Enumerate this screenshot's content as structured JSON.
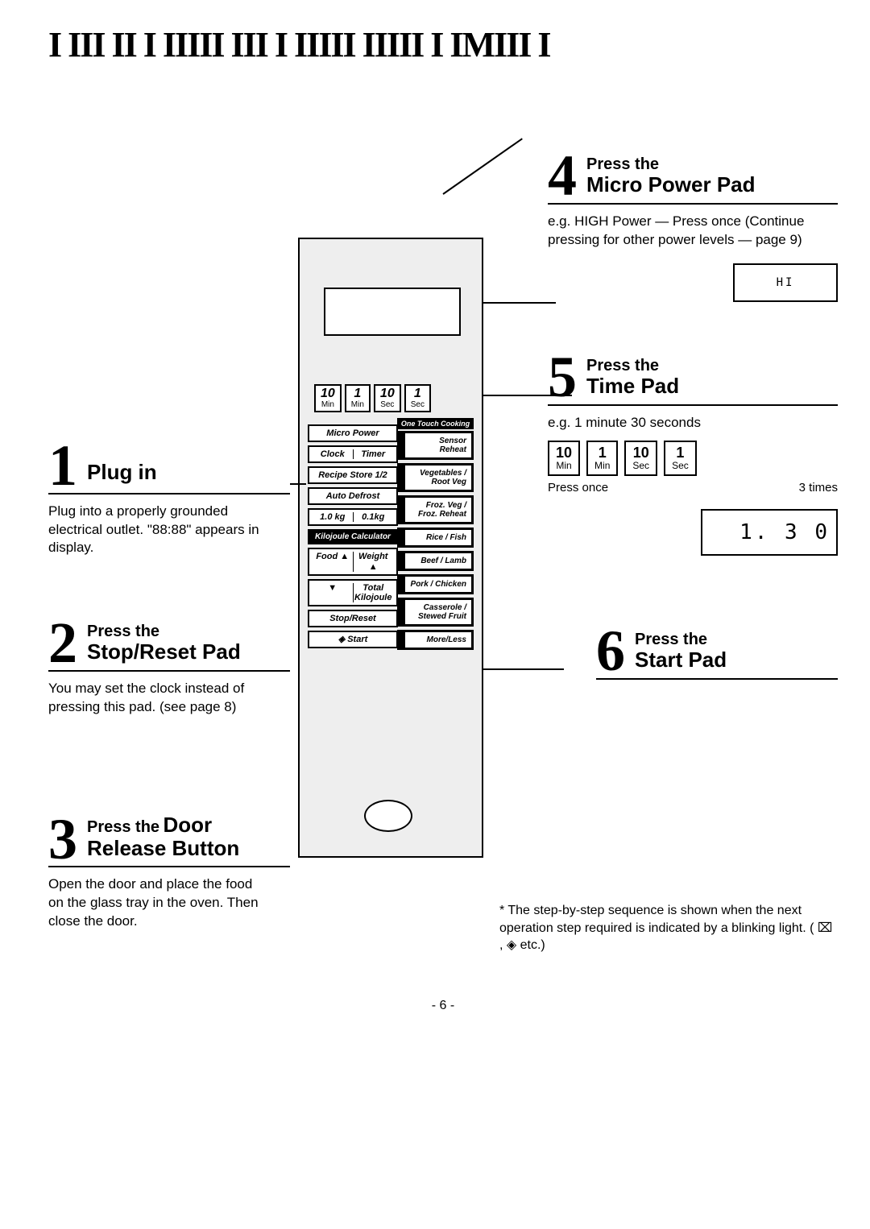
{
  "page_number": "- 6 -",
  "title_garbled": "I III II I IIIII III I IIIII IIIII I IMIII I",
  "steps": {
    "s1": {
      "num": "1",
      "title_single": "Plug in",
      "body": "Plug into a properly grounded electrical outlet. \"88:88\" appears in display."
    },
    "s2": {
      "num": "2",
      "title_line1": "Press the",
      "title_line2": "Stop/Reset Pad",
      "body": "You may set the clock instead of pressing this pad. (see page 8)"
    },
    "s3": {
      "num": "3",
      "title_line1": "Press the",
      "title_line2_html": "Press the  Door Release Button",
      "l1": "Press the",
      "l1b": "Door",
      "l2": "Release Button",
      "body": "Open the door and place the food on the glass tray in the oven. Then close the door."
    },
    "s4": {
      "num": "4",
      "title_line1": "Press the",
      "title_line2": "Micro Power Pad",
      "eg": "e.g.  HIGH Power — Press once (Continue pressing for other power levels — page 9)"
    },
    "s5": {
      "num": "5",
      "title_line1": "Press the",
      "title_line2": "Time Pad",
      "eg": "e.g.  1 minute 30 seconds",
      "caption_left": "Press once",
      "caption_right": "3 times",
      "display_value": "1. 3 0"
    },
    "s6": {
      "num": "6",
      "title_line1": "Press the",
      "title_line2": "Start Pad"
    }
  },
  "timepads": [
    {
      "big": "10",
      "sub": "Min"
    },
    {
      "big": "1",
      "sub": "Min"
    },
    {
      "big": "10",
      "sub": "Sec"
    },
    {
      "big": "1",
      "sub": "Sec"
    }
  ],
  "panel": {
    "timepads": [
      {
        "big": "10",
        "sub": "Min"
      },
      {
        "big": "1",
        "sub": "Min"
      },
      {
        "big": "10",
        "sub": "Sec"
      },
      {
        "big": "1",
        "sub": "Sec"
      }
    ],
    "left_buttons": [
      {
        "type": "single",
        "label": "Micro Power"
      },
      {
        "type": "split",
        "a": "Clock",
        "b": "Timer"
      },
      {
        "type": "single",
        "label": "Recipe Store 1/2"
      },
      {
        "type": "single",
        "label": "Auto Defrost"
      },
      {
        "type": "split",
        "a": "1.0 kg",
        "b": "0.1kg"
      },
      {
        "type": "head",
        "label": "Kilojoule Calculator"
      },
      {
        "type": "split",
        "a": "Food ▲",
        "b": "Weight ▲"
      },
      {
        "type": "split",
        "a": "▼",
        "b": "Total Kilojoule"
      },
      {
        "type": "single",
        "label": "Stop/Reset"
      },
      {
        "type": "single",
        "label": "◈ Start"
      }
    ],
    "right_head": "One Touch Cooking",
    "right_buttons": [
      "Sensor Reheat",
      "Vegetables / Root Veg",
      "Froz. Veg / Froz. Reheat",
      "Rice / Fish",
      "Beef / Lamb",
      "Pork / Chicken",
      "Casserole / Stewed Fruit",
      "More/Less"
    ]
  },
  "footnote": "*  The step-by-step sequence is shown when the next operation step required is indicated by a blinking light. ( ⌧ , ◈ etc.)",
  "display_hi": "HI"
}
